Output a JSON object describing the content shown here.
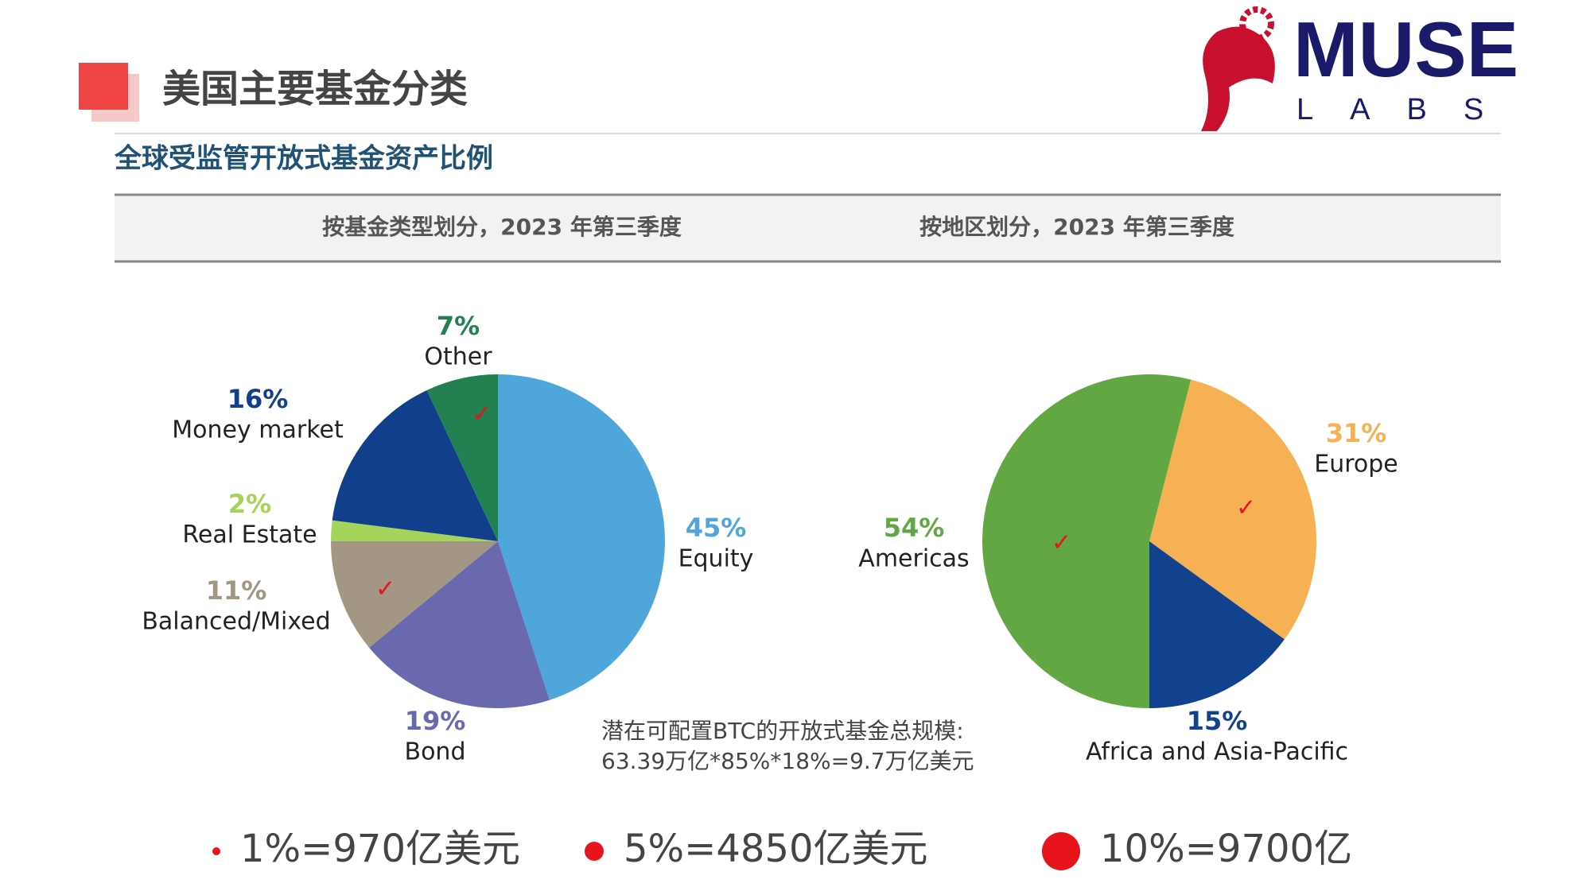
{
  "header": {
    "title": "美国主要基金分类",
    "subtitle": "全球受监管开放式基金资产比例",
    "logo": {
      "name": "MUSE",
      "tagline": "LABS"
    }
  },
  "chart_data": [
    {
      "type": "pie",
      "title": "按基金类型划分，2023 年第三季度",
      "categories": [
        "Equity",
        "Bond",
        "Balanced/Mixed",
        "Real Estate",
        "Money market",
        "Other"
      ],
      "values": [
        45,
        19,
        11,
        2,
        16,
        7
      ],
      "value_labels": [
        "45%",
        "19%",
        "11%",
        "2%",
        "16%",
        "7%"
      ],
      "colors": [
        "#4fa6db",
        "#6b69ad",
        "#a39684",
        "#a4d45a",
        "#123f8c",
        "#238050"
      ]
    },
    {
      "type": "pie",
      "title": "按地区划分，2023 年第三季度",
      "categories": [
        "Europe",
        "Africa and Asia-Pacific",
        "Americas"
      ],
      "values": [
        31,
        15,
        54
      ],
      "value_labels": [
        "31%",
        "15%",
        "54%"
      ],
      "colors": [
        "#f6b155",
        "#12418e",
        "#62a744"
      ]
    }
  ],
  "note": {
    "lines": [
      "潜在可配置BTC的开放式基金总规模:",
      "63.39万亿*85%*18%=9.7万亿美元"
    ]
  },
  "bullets": [
    "1%=970亿美元",
    "5%=4850亿美元",
    "10%=9700亿"
  ]
}
